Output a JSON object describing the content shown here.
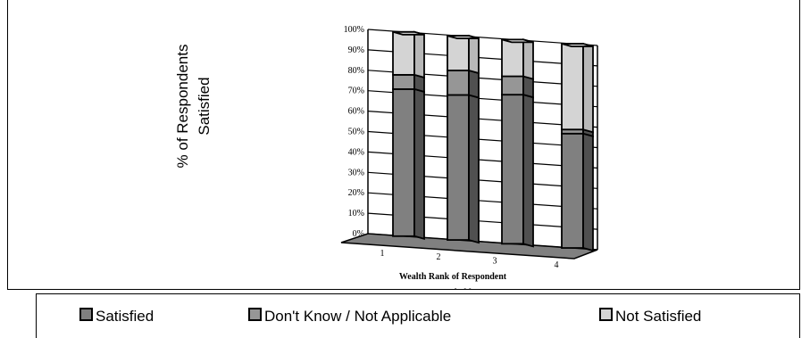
{
  "chart_data": {
    "type": "bar",
    "stacked": true,
    "style": "3d",
    "categories": [
      "1",
      "2",
      "3",
      "4"
    ],
    "series": [
      {
        "name": "Satisfied",
        "values": [
          72,
          71,
          73,
          56
        ],
        "color": "#808080"
      },
      {
        "name": "Don't Know / Not Applicable",
        "values": [
          7,
          12,
          9,
          2
        ],
        "color": "#969696"
      },
      {
        "name": "Not Satisfied",
        "values": [
          21,
          17,
          18,
          42
        ],
        "color": "#d4d4d4"
      }
    ],
    "ylim": [
      0,
      100
    ],
    "yticks": [
      "0%",
      "10%",
      "20%",
      "30%",
      "40%",
      "50%",
      "60%",
      "70%",
      "80%",
      "90%",
      "100%"
    ],
    "ylabel_line1": "% of Respondents",
    "ylabel_line2": "Satisfied",
    "xlabel_line1": "Wealth Rank of Respondent",
    "xlabel_line2": "Households",
    "grid": true,
    "legend_position": "bottom"
  }
}
